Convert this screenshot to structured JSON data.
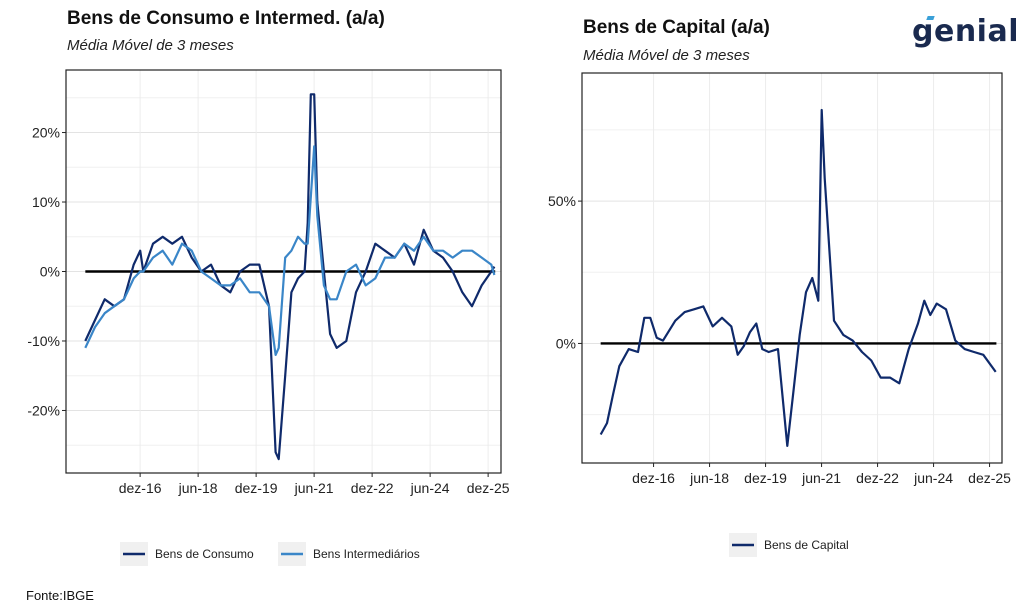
{
  "left": {
    "title": "Bens de Consumo e Intermed. (a/a)",
    "subtitle": "Média Móvel de 3 meses"
  },
  "right": {
    "title": "Bens de Capital (a/a)",
    "subtitle": "Média Móvel de 3 meses"
  },
  "logo": "genial",
  "source": "Fonte:IBGE",
  "colors": {
    "consumo": "#0f2a6b",
    "intermediarios": "#3a86c8",
    "capital": "#0f2a6b",
    "zero_line": "#000000"
  },
  "chart_data": [
    {
      "type": "line",
      "title": "Bens de Consumo e Intermed. (a/a)",
      "subtitle": "Média Móvel de 3 meses",
      "x_unit": "years",
      "xlim": [
        2015.0,
        2026.25
      ],
      "ylim": [
        -29,
        29
      ],
      "yticks": [
        -20,
        -10,
        0,
        10,
        20
      ],
      "ytick_labels": [
        "-20%",
        "-10%",
        "0%",
        "10%",
        "20%"
      ],
      "xticks": [
        2016.917,
        2018.417,
        2019.917,
        2021.417,
        2022.917,
        2024.417,
        2025.917
      ],
      "xtick_labels": [
        "dez-16",
        "jun-18",
        "dez-19",
        "jun-21",
        "dez-22",
        "jun-24",
        "dez-25"
      ],
      "grid": true,
      "legend": "bottom",
      "series": [
        {
          "name": "Bens de Consumo",
          "x": [
            2015.5,
            2015.75,
            2016.0,
            2016.25,
            2016.5,
            2016.75,
            2016.92,
            2017.0,
            2017.25,
            2017.5,
            2017.75,
            2018.0,
            2018.25,
            2018.5,
            2018.75,
            2019.0,
            2019.25,
            2019.5,
            2019.75,
            2020.0,
            2020.25,
            2020.42,
            2020.5,
            2020.67,
            2020.83,
            2021.0,
            2021.17,
            2021.25,
            2021.33,
            2021.42,
            2021.5,
            2021.67,
            2021.83,
            2022.0,
            2022.25,
            2022.5,
            2022.75,
            2023.0,
            2023.25,
            2023.5,
            2023.75,
            2024.0,
            2024.25,
            2024.5,
            2024.75,
            2025.0,
            2025.25,
            2025.5,
            2025.75,
            2026.0,
            2026.08
          ],
          "values": [
            -10,
            -7,
            -4,
            -5,
            -4,
            1,
            3,
            0,
            4,
            5,
            4,
            5,
            2,
            0,
            1,
            -2,
            -3,
            0,
            1,
            1,
            -5,
            -26,
            -27,
            -15,
            -3,
            -1,
            0,
            7,
            25.5,
            25.5,
            10,
            0,
            -9,
            -11,
            -10,
            -3,
            0,
            4,
            3,
            2,
            4,
            1,
            6,
            3,
            2,
            0,
            -3,
            -5,
            -2,
            0,
            0.7
          ]
        },
        {
          "name": "Bens Intermediários",
          "x": [
            2015.5,
            2015.75,
            2016.0,
            2016.25,
            2016.5,
            2016.75,
            2016.92,
            2017.0,
            2017.25,
            2017.5,
            2017.75,
            2018.0,
            2018.25,
            2018.5,
            2018.75,
            2019.0,
            2019.25,
            2019.5,
            2019.75,
            2020.0,
            2020.25,
            2020.42,
            2020.5,
            2020.67,
            2020.83,
            2021.0,
            2021.17,
            2021.25,
            2021.42,
            2021.5,
            2021.67,
            2021.83,
            2022.0,
            2022.25,
            2022.5,
            2022.75,
            2023.0,
            2023.25,
            2023.5,
            2023.75,
            2024.0,
            2024.25,
            2024.5,
            2024.75,
            2025.0,
            2025.25,
            2025.5,
            2025.75,
            2026.0,
            2026.08
          ],
          "values": [
            -11,
            -8,
            -6,
            -5,
            -4,
            -1,
            0,
            0,
            2,
            3,
            1,
            4,
            3,
            0,
            -1,
            -2,
            -2,
            -1,
            -3,
            -3,
            -5,
            -12,
            -11,
            2,
            3,
            5,
            4,
            4,
            18,
            8,
            -2,
            -4,
            -4,
            0,
            1,
            -2,
            -1,
            2,
            2,
            4,
            3,
            5,
            3,
            3,
            2,
            3,
            3,
            2,
            1,
            -0.5
          ]
        }
      ]
    },
    {
      "type": "line",
      "title": "Bens de Capital (a/a)",
      "subtitle": "Média Móvel de 3 meses",
      "x_unit": "years",
      "xlim": [
        2015.0,
        2026.25
      ],
      "ylim": [
        -42,
        95
      ],
      "yticks": [
        0,
        50
      ],
      "ytick_labels": [
        "0%",
        "50%"
      ],
      "xticks": [
        2016.917,
        2018.417,
        2019.917,
        2021.417,
        2022.917,
        2024.417,
        2025.917
      ],
      "xtick_labels": [
        "dez-16",
        "jun-18",
        "dez-19",
        "jun-21",
        "dez-22",
        "jun-24",
        "dez-25"
      ],
      "grid": true,
      "legend": "bottom",
      "series": [
        {
          "name": "Bens de Capital",
          "x": [
            2015.5,
            2015.67,
            2015.83,
            2016.0,
            2016.25,
            2016.5,
            2016.67,
            2016.83,
            2017.0,
            2017.17,
            2017.5,
            2017.75,
            2018.0,
            2018.25,
            2018.5,
            2018.75,
            2019.0,
            2019.17,
            2019.33,
            2019.5,
            2019.67,
            2019.83,
            2020.0,
            2020.25,
            2020.5,
            2020.67,
            2020.83,
            2021.0,
            2021.17,
            2021.33,
            2021.42,
            2021.5,
            2021.75,
            2022.0,
            2022.25,
            2022.5,
            2022.75,
            2023.0,
            2023.25,
            2023.5,
            2023.75,
            2024.0,
            2024.17,
            2024.33,
            2024.5,
            2024.75,
            2025.0,
            2025.25,
            2025.5,
            2025.75,
            2026.08
          ],
          "values": [
            -32,
            -28,
            -18,
            -8,
            -2,
            -3,
            9,
            9,
            2,
            1,
            8,
            11,
            12,
            13,
            6,
            9,
            6,
            -4,
            -1,
            4,
            7,
            -2,
            -3,
            -2,
            -36,
            -16,
            3,
            18,
            23,
            15,
            82,
            58,
            8,
            3,
            1,
            -3,
            -6,
            -12,
            -12,
            -14,
            -2,
            7,
            15,
            10,
            14,
            12,
            1,
            -2,
            -3,
            -4,
            -10
          ]
        }
      ]
    }
  ]
}
